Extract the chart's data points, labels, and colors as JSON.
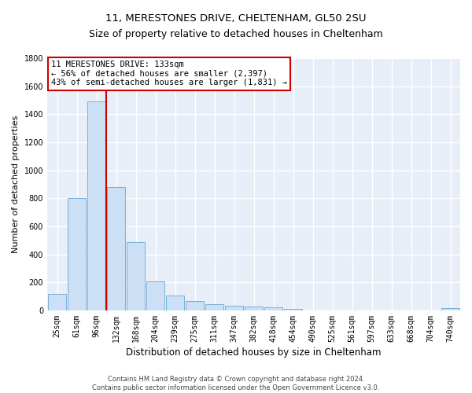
{
  "title1": "11, MERESTONES DRIVE, CHELTENHAM, GL50 2SU",
  "title2": "Size of property relative to detached houses in Cheltenham",
  "xlabel": "Distribution of detached houses by size in Cheltenham",
  "ylabel": "Number of detached properties",
  "footer1": "Contains HM Land Registry data © Crown copyright and database right 2024.",
  "footer2": "Contains public sector information licensed under the Open Government Licence v3.0.",
  "categories": [
    "25sqm",
    "61sqm",
    "96sqm",
    "132sqm",
    "168sqm",
    "204sqm",
    "239sqm",
    "275sqm",
    "311sqm",
    "347sqm",
    "382sqm",
    "418sqm",
    "454sqm",
    "490sqm",
    "525sqm",
    "561sqm",
    "597sqm",
    "633sqm",
    "668sqm",
    "704sqm",
    "740sqm"
  ],
  "values": [
    120,
    800,
    1490,
    880,
    490,
    205,
    105,
    65,
    45,
    35,
    30,
    20,
    10,
    0,
    0,
    0,
    0,
    0,
    0,
    0,
    15
  ],
  "bar_color": "#cce0f5",
  "bar_edge_color": "#7ab0d8",
  "vline_x": 2.5,
  "vline_color": "#cc0000",
  "annotation_text_line1": "11 MERESTONES DRIVE: 133sqm",
  "annotation_text_line2": "← 56% of detached houses are smaller (2,397)",
  "annotation_text_line3": "43% of semi-detached houses are larger (1,831) →",
  "annotation_box_color": "#cc0000",
  "ylim_max": 1800,
  "yticks": [
    0,
    200,
    400,
    600,
    800,
    1000,
    1200,
    1400,
    1600,
    1800
  ],
  "background_color": "#e8eef7",
  "grid_color": "#ffffff",
  "title1_fontsize": 9.5,
  "title2_fontsize": 9,
  "xlabel_fontsize": 8.5,
  "ylabel_fontsize": 8,
  "tick_fontsize": 7,
  "annotation_fontsize": 7.5,
  "footer_fontsize": 6
}
